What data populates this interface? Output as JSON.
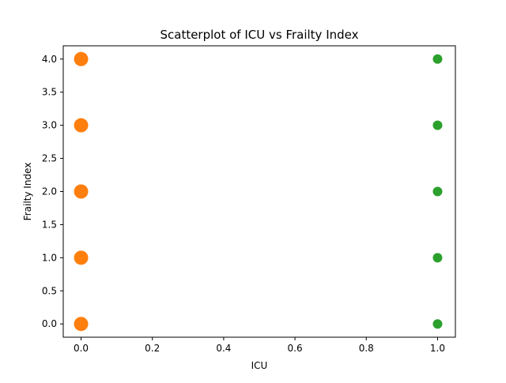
{
  "chart_data": {
    "type": "scatter",
    "title": "Scatterplot of ICU vs Frailty Index",
    "xlabel": "ICU",
    "ylabel": "Frailty Index",
    "xlim": [
      -0.05,
      1.05
    ],
    "ylim": [
      -0.2,
      4.2
    ],
    "x_ticks": [
      0.0,
      0.2,
      0.4,
      0.6,
      0.8,
      1.0
    ],
    "x_tick_labels": [
      "0.0",
      "0.2",
      "0.4",
      "0.6",
      "0.8",
      "1.0"
    ],
    "y_ticks": [
      0.0,
      0.5,
      1.0,
      1.5,
      2.0,
      2.5,
      3.0,
      3.5,
      4.0
    ],
    "y_tick_labels": [
      "0.0",
      "0.5",
      "1.0",
      "1.5",
      "2.0",
      "2.5",
      "3.0",
      "3.5",
      "4.0"
    ],
    "grid": false,
    "legend": "none",
    "series": [
      {
        "color": "#ff7f0e",
        "marker": "large circle",
        "points": [
          {
            "x": 0,
            "y": 0
          },
          {
            "x": 0,
            "y": 1
          },
          {
            "x": 0,
            "y": 2
          },
          {
            "x": 0,
            "y": 3
          },
          {
            "x": 0,
            "y": 4
          }
        ]
      },
      {
        "color": "#2ca02c",
        "marker": "small circle",
        "points": [
          {
            "x": 1,
            "y": 0
          },
          {
            "x": 1,
            "y": 1
          },
          {
            "x": 1,
            "y": 2
          },
          {
            "x": 1,
            "y": 3
          },
          {
            "x": 1,
            "y": 4
          }
        ]
      }
    ]
  }
}
